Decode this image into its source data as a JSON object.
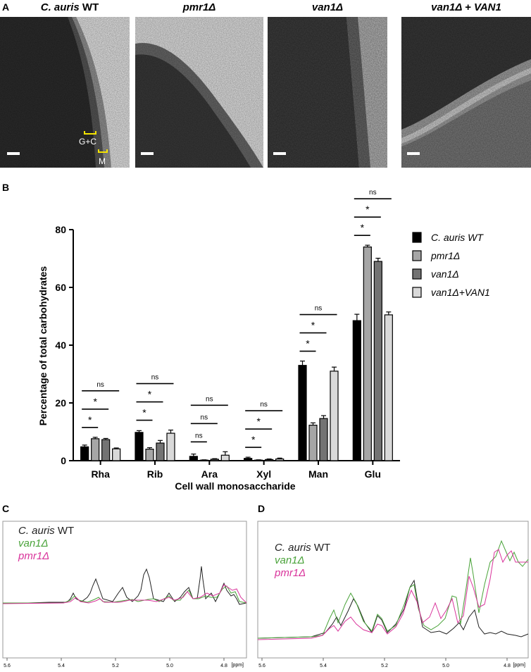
{
  "panelA": {
    "letter": "A",
    "titles": [
      {
        "pre": "C. auris",
        "post": " WT"
      },
      {
        "pre": "pmr1Δ",
        "post": ""
      },
      {
        "pre": "van1Δ",
        "post": ""
      },
      {
        "pre": "van1Δ + VAN1",
        "post": ""
      }
    ],
    "annotation_gc": "G+C",
    "annotation_m": "M"
  },
  "panelB": {
    "letter": "B",
    "chart_data": {
      "type": "bar",
      "ylabel": "Percentage of total carbohydrates",
      "xlabel": "Cell wall monosaccharide",
      "ylim": [
        0,
        80
      ],
      "yticks": [
        "0",
        "20",
        "40",
        "60",
        "80"
      ],
      "categories": [
        "Rha",
        "Rib",
        "Ara",
        "Xyl",
        "Man",
        "Glu"
      ],
      "series": [
        {
          "name": "C. auris WT",
          "color": "#000000",
          "values": [
            4.8,
            9.8,
            1.5,
            0.8,
            33.0,
            48.5
          ],
          "errors": [
            0.6,
            0.6,
            0.8,
            0.4,
            1.5,
            2.2
          ]
        },
        {
          "name": "pmr1Δ",
          "color": "#a6a6a6",
          "values": [
            7.6,
            4.0,
            0.2,
            0.2,
            12.3,
            74.0
          ],
          "errors": [
            0.5,
            0.5,
            0.1,
            0.1,
            0.8,
            0.6
          ]
        },
        {
          "name": "van1Δ",
          "color": "#737373",
          "values": [
            7.3,
            6.1,
            0.5,
            0.4,
            14.6,
            69.0
          ],
          "errors": [
            0.4,
            0.9,
            0.2,
            0.2,
            1.0,
            1.1
          ]
        },
        {
          "name": "van1Δ+VAN1",
          "color": "#d9d9d9",
          "values": [
            4.1,
            9.5,
            1.9,
            0.6,
            31.0,
            50.5
          ],
          "errors": [
            0.3,
            1.1,
            1.2,
            0.3,
            1.4,
            1.0
          ]
        }
      ],
      "significance": [
        {
          "category": "Rha",
          "labels": [
            "*",
            "*",
            "ns"
          ]
        },
        {
          "category": "Rib",
          "labels": [
            "*",
            "*",
            "ns"
          ]
        },
        {
          "category": "Ara",
          "labels": [
            "ns",
            "ns",
            "ns"
          ]
        },
        {
          "category": "Xyl",
          "labels": [
            "*",
            "*",
            "ns"
          ]
        },
        {
          "category": "Man",
          "labels": [
            "*",
            "*",
            "ns"
          ]
        },
        {
          "category": "Glu",
          "labels": [
            "*",
            "*",
            "ns"
          ]
        }
      ],
      "legend_position": "right"
    }
  },
  "panelC": {
    "letter": "C",
    "legend": [
      {
        "pre": "C. auris",
        "post": " WT",
        "color": "#222222"
      },
      {
        "pre": "van1Δ",
        "post": "",
        "color": "#4aa33a"
      },
      {
        "pre": "pmr1Δ",
        "post": "",
        "color": "#d9349b"
      }
    ],
    "ticks": [
      "5.6",
      "5.4",
      "5.2",
      "5.0",
      "4.8"
    ],
    "unit": "[ppm]"
  },
  "panelD": {
    "letter": "D",
    "legend": [
      {
        "pre": "C. auris",
        "post": " WT",
        "color": "#222222"
      },
      {
        "pre": "van1Δ",
        "post": "",
        "color": "#4aa33a"
      },
      {
        "pre": "pmr1Δ",
        "post": "",
        "color": "#d9349b"
      }
    ],
    "ticks": [
      "5.6",
      "5.4",
      "5.2",
      "5.0",
      "4.8"
    ],
    "unit": "[ppm]"
  }
}
